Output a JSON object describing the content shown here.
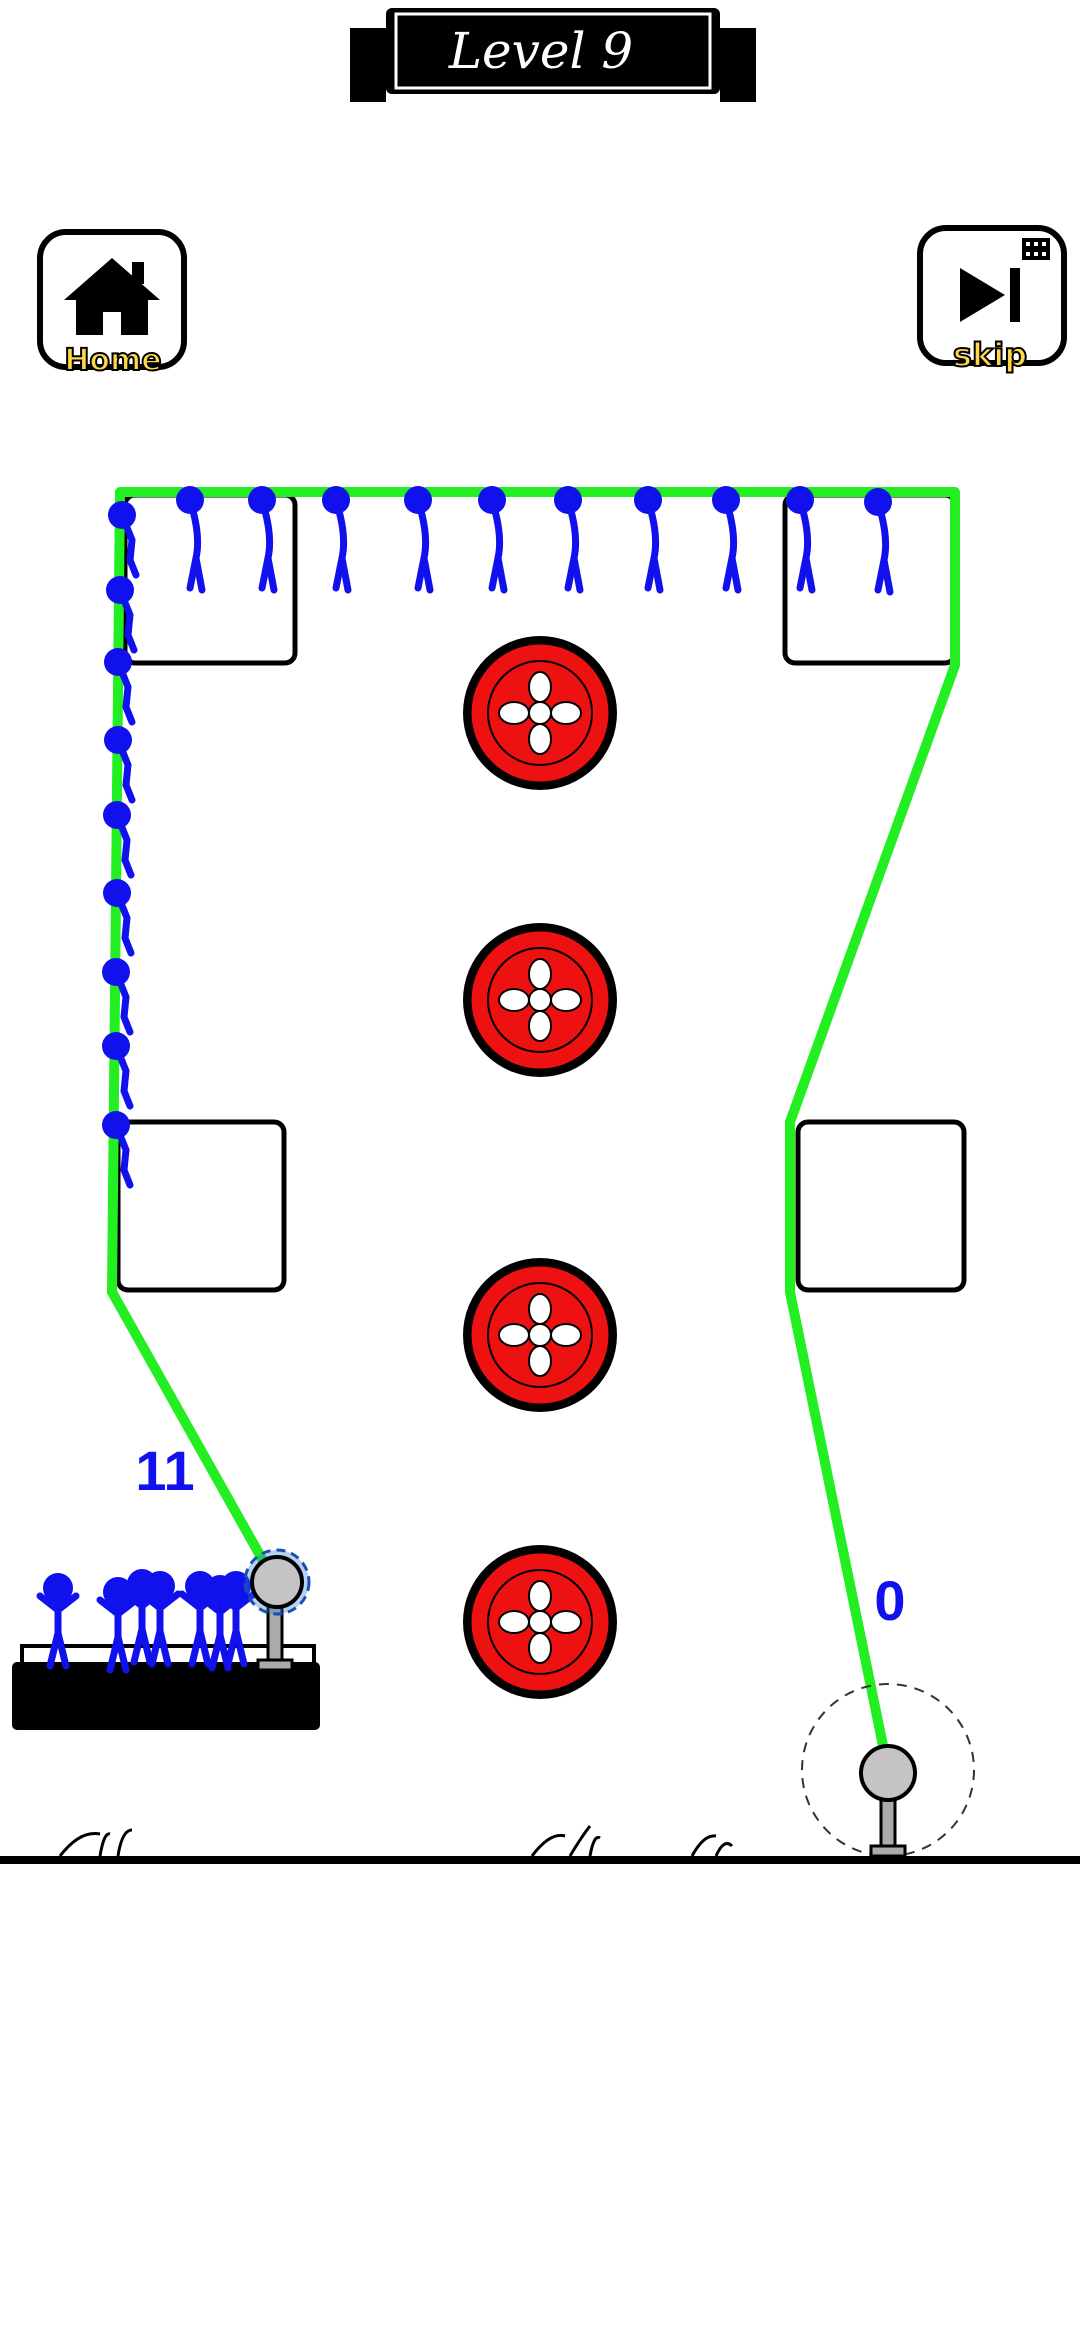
{
  "level_banner": {
    "label": "Level 9"
  },
  "buttons": {
    "home": {
      "label": "Home",
      "icon": "house-icon"
    },
    "skip": {
      "label": "skip",
      "icon": "skip-forward-icon"
    }
  },
  "counters": {
    "start_remaining": "11",
    "goal_rescued": "0"
  },
  "colors": {
    "rope": "#22ee22",
    "stickman": "#1111ee",
    "saw": "#ee1111",
    "anchor": "#bbbbbb",
    "ink": "#000000"
  }
}
